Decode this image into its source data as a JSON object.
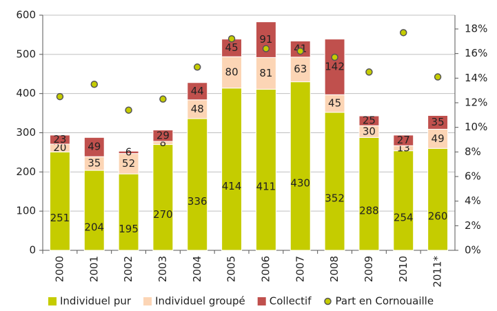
{
  "chart_data": {
    "type": "bar",
    "stacked": true,
    "categories": [
      "2000",
      "2001",
      "2002",
      "2003",
      "2004",
      "2005",
      "2006",
      "2007",
      "2008",
      "2009",
      "2010",
      "2011*"
    ],
    "series": [
      {
        "name": "Individuel pur",
        "color": "#c5cc00",
        "values": [
          251,
          204,
          195,
          270,
          336,
          414,
          411,
          430,
          352,
          288,
          254,
          260
        ]
      },
      {
        "name": "Individuel groupé",
        "color": "#fcd5b5",
        "values": [
          20,
          35,
          52,
          8,
          48,
          80,
          81,
          63,
          45,
          30,
          13,
          49
        ]
      },
      {
        "name": "Collectif",
        "color": "#c0504d",
        "values": [
          23,
          49,
          6,
          29,
          44,
          45,
          91,
          41,
          142,
          25,
          27,
          35
        ]
      },
      {
        "name": "Part en Cornouaille",
        "type": "scatter",
        "axis": "y2",
        "color": "#c5cc00",
        "values": [
          12.5,
          13.5,
          11.4,
          12.3,
          14.9,
          17.2,
          16.4,
          16.2,
          15.7,
          14.5,
          17.7,
          14.1
        ]
      }
    ],
    "ylim": [
      0,
      600
    ],
    "yticks": [
      0,
      100,
      200,
      300,
      400,
      500,
      600
    ],
    "y2lim": [
      0,
      19
    ],
    "y2ticks": [
      {
        "value": 0,
        "label": "0%"
      },
      {
        "value": 2,
        "label": "2%"
      },
      {
        "value": 4,
        "label": "4%"
      },
      {
        "value": 6,
        "label": "6%"
      },
      {
        "value": 8,
        "label": "8%"
      },
      {
        "value": 10,
        "label": "10%"
      },
      {
        "value": 12,
        "label": "12%"
      },
      {
        "value": 14,
        "label": "14%"
      },
      {
        "value": 16,
        "label": "16%"
      },
      {
        "value": 18,
        "label": "18%"
      }
    ],
    "grid": true,
    "legend": "bottom"
  }
}
